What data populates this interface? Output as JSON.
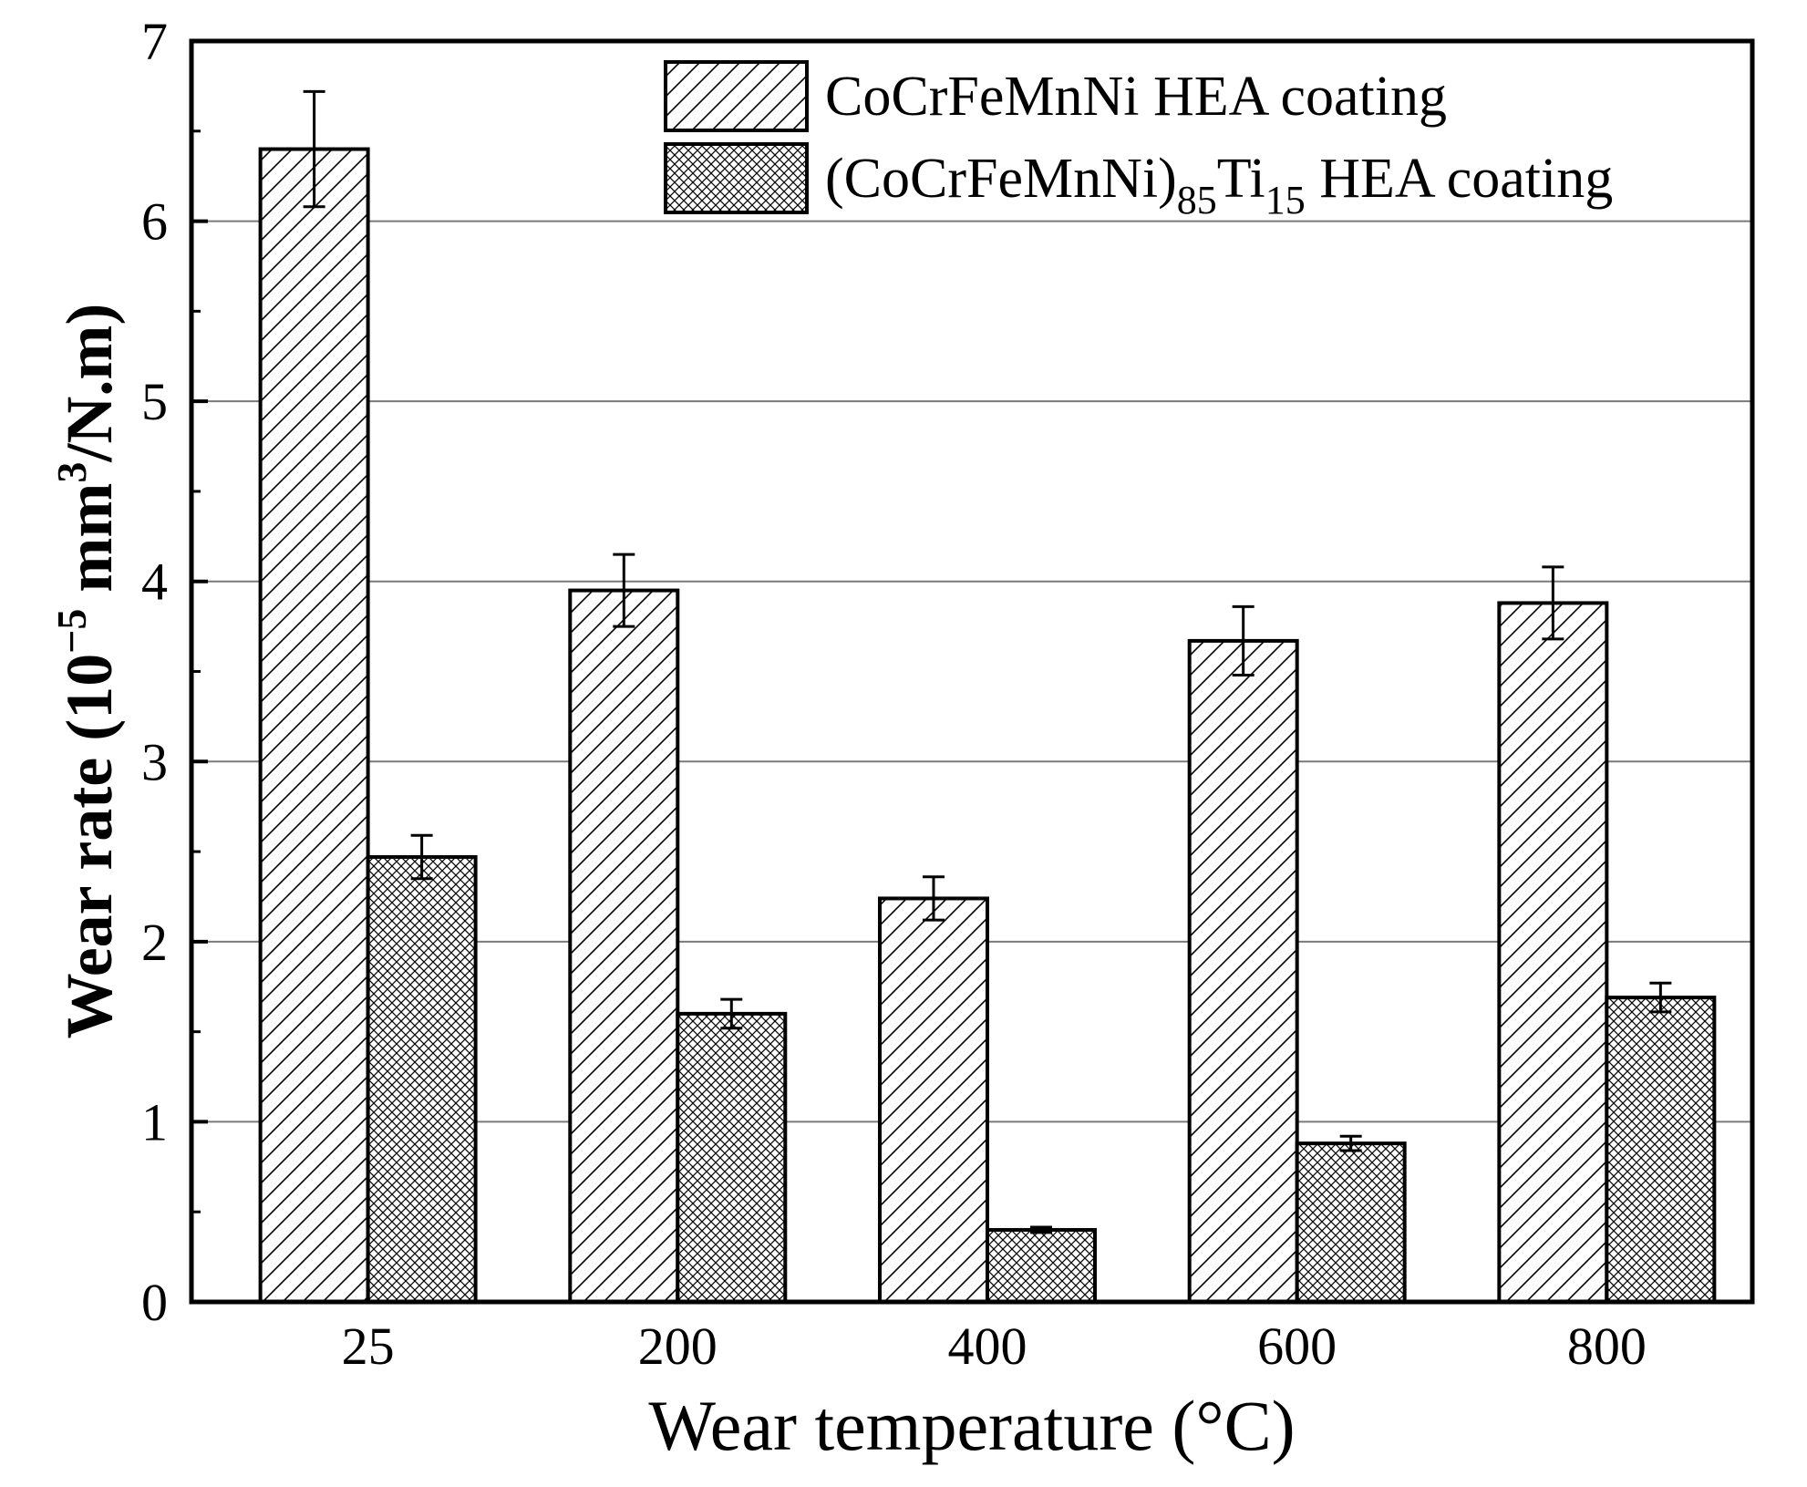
{
  "chart_data": {
    "type": "bar",
    "title": "",
    "xlabel": "Wear temperature (°C)",
    "ylabel": {
      "prefix": "Wear rate (10",
      "exponent": "−5",
      "middle": " mm",
      "middle_sup": "3",
      "suffix": "/N.m)"
    },
    "categories": [
      "25",
      "200",
      "400",
      "600",
      "800"
    ],
    "ylim": [
      0,
      7
    ],
    "yticks": [
      "0",
      "1",
      "2",
      "3",
      "4",
      "5",
      "6",
      "7"
    ],
    "grid": true,
    "legend_position": "top-right",
    "series": [
      {
        "name": "CoCrFeMnNi HEA coating",
        "legend": {
          "parts": [
            {
              "text": "CoCrFeMnNi HEA coating"
            }
          ]
        },
        "pattern": "diagonal-hatch",
        "values": [
          6.4,
          3.95,
          2.24,
          3.67,
          3.88
        ],
        "errors": [
          0.32,
          0.2,
          0.12,
          0.19,
          0.2
        ]
      },
      {
        "name": "(CoCrFeMnNi)85Ti15 HEA coating",
        "legend": {
          "parts": [
            {
              "text": "(CoCrFeMnNi)"
            },
            {
              "text": "85",
              "sub": true
            },
            {
              "text": "Ti"
            },
            {
              "text": "15",
              "sub": true
            },
            {
              "text": " HEA coating"
            }
          ]
        },
        "pattern": "cross-hatch",
        "values": [
          2.47,
          1.6,
          0.4,
          0.88,
          1.69
        ],
        "errors": [
          0.12,
          0.08,
          0.015,
          0.04,
          0.08
        ]
      }
    ]
  }
}
